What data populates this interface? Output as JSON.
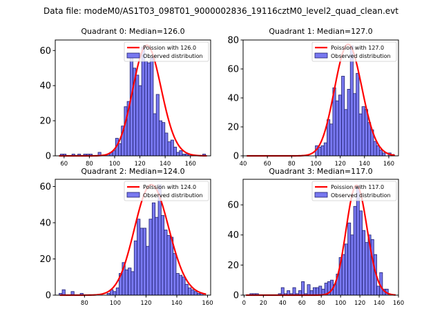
{
  "chart_data": {
    "suptitle": "Data file: modeM0/AS1T03_098T01_9000002836_19116cztM0_level2_quad_clean.evt",
    "panels": [
      {
        "type": "bar",
        "title": "Quadrant 0: Median=126.0",
        "xlim": [
          53,
          176
        ],
        "ylim": [
          0,
          66
        ],
        "xticks": [
          60,
          80,
          100,
          120,
          140,
          160
        ],
        "yticks": [
          0,
          20,
          40,
          60
        ],
        "bin_width": 2.3,
        "bins_start": [
          57,
          59.3,
          66.2,
          70.8,
          75.4,
          77.7,
          80,
          86.9,
          93.8,
          96.1,
          98.4,
          100.7,
          103,
          105.3,
          107.6,
          109.9,
          112.2,
          114.5,
          116.8,
          119.1,
          121.4,
          123.7,
          126,
          128.3,
          130.6,
          132.9,
          135.2,
          137.5,
          139.8,
          142.1,
          144.4,
          146.7,
          149,
          151.3,
          153.6,
          155.9,
          158.2,
          169.7
        ],
        "counts": [
          1,
          1,
          1,
          1,
          1,
          1,
          1,
          2,
          1,
          2,
          3,
          10,
          7,
          17,
          28,
          31,
          56,
          50,
          46,
          40,
          62,
          54,
          53,
          56,
          24,
          35,
          20,
          19,
          13,
          8,
          9,
          5,
          2,
          3,
          1,
          1,
          1,
          1
        ],
        "poisson_mean": 126.0,
        "poisson_peak": 63,
        "legend": [
          "Poission with 126.0",
          "Observed distribution"
        ],
        "legend_position": "upper-right"
      },
      {
        "type": "bar",
        "title": "Quadrant 1: Median=127.0",
        "xlim": [
          40,
          168
        ],
        "ylim": [
          0,
          80
        ],
        "xticks": [
          40,
          60,
          80,
          100,
          120,
          140,
          160
        ],
        "yticks": [
          0,
          20,
          40,
          60,
          80
        ],
        "bin_width": 2.4,
        "bins_start": [
          99.5,
          101.9,
          104.3,
          106.7,
          109.1,
          111.5,
          113.9,
          116.3,
          118.7,
          121.1,
          123.5,
          125.9,
          128.3,
          130.7,
          133.1,
          135.5,
          137.9,
          140.3,
          142.7,
          145.1,
          147.5,
          149.9,
          152.3,
          154.7,
          159.5,
          161.9
        ],
        "counts": [
          7,
          6,
          7,
          9,
          25,
          22,
          47,
          38,
          42,
          55,
          32,
          46,
          76,
          43,
          57,
          29,
          34,
          32,
          23,
          18,
          10,
          7,
          4,
          2,
          2,
          1
        ],
        "poisson_mean": 127.0,
        "poisson_peak": 77,
        "legend": [
          "Poission with 127.0",
          "Observed distribution"
        ],
        "legend_position": "upper-right"
      },
      {
        "type": "bar",
        "title": "Quadrant 2: Median=124.0",
        "xlim": [
          61,
          162
        ],
        "ylim": [
          0,
          64
        ],
        "xticks": [
          60,
          80,
          100,
          120,
          140,
          160
        ],
        "yticks": [
          0,
          20,
          40,
          60
        ],
        "bin_width": 1.95,
        "bins_start": [
          63.5,
          65.5,
          71.3,
          77.2,
          94.7,
          96.7,
          98.6,
          100.6,
          102.5,
          104.5,
          106.4,
          108.4,
          110.3,
          112.3,
          114.2,
          116.2,
          118.1,
          120.1,
          122.0,
          124.0,
          125.9,
          127.9,
          129.8,
          131.8,
          133.7,
          135.7,
          137.6,
          139.6,
          141.5,
          143.5,
          145.4,
          147.4,
          149.3,
          151.3,
          153.2,
          155.2
        ],
        "counts": [
          1,
          3,
          2,
          1,
          1,
          3,
          2,
          4,
          12,
          18,
          14,
          15,
          13,
          30,
          42,
          37,
          37,
          27,
          42,
          51,
          43,
          61,
          44,
          36,
          33,
          32,
          23,
          12,
          11,
          10,
          6,
          4,
          3,
          2,
          1,
          1
        ],
        "poisson_mean": 124.0,
        "poisson_peak": 61,
        "legend": [
          "Poission with 124.0",
          "Observed distribution"
        ],
        "legend_position": "upper-right"
      },
      {
        "type": "bar",
        "title": "Quadrant 3: Median=117.0",
        "xlim": [
          -1,
          160
        ],
        "ylim": [
          0,
          77
        ],
        "xticks": [
          0,
          20,
          40,
          60,
          80,
          100,
          120,
          140,
          160
        ],
        "yticks": [
          0,
          20,
          40,
          60
        ],
        "bin_width": 2.95,
        "bins_start": [
          6,
          9,
          12,
          35.5,
          38.5,
          41.5,
          44.5,
          47.5,
          50.5,
          53.5,
          56.5,
          59.5,
          62.5,
          65.5,
          68.5,
          71.5,
          74.5,
          77.5,
          80.5,
          83.5,
          86.5,
          89.5,
          92.5,
          95.5,
          98.5,
          101.5,
          104.5,
          107.5,
          110.5,
          113.5,
          116.5,
          119.5,
          122.5,
          125.5,
          128.5,
          131.5,
          134.5,
          137.5,
          140.5,
          143.5,
          146.5
        ],
        "counts": [
          1,
          1,
          1,
          1,
          5,
          1,
          3,
          1,
          5,
          1,
          3,
          9,
          1,
          7,
          3,
          5,
          5,
          6,
          4,
          8,
          9,
          10,
          7,
          14,
          25,
          27,
          34,
          48,
          40,
          59,
          73,
          56,
          43,
          35,
          40,
          37,
          27,
          6,
          15,
          4,
          4
        ],
        "poisson_mean": 117.0,
        "poisson_peak": 73,
        "legend": [
          "Poission with 117.0",
          "Observed distribution"
        ],
        "legend_position": "upper-right"
      }
    ],
    "colors": {
      "bar_fill": "#7878f0",
      "bar_edge": "#1e1e6e",
      "poisson_line": "#ff0000"
    }
  }
}
